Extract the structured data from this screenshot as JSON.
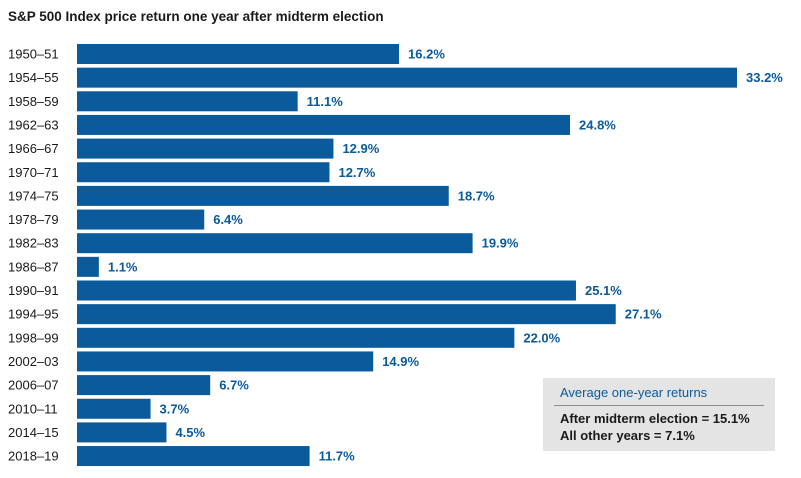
{
  "chart_data": {
    "type": "bar",
    "orientation": "horizontal",
    "title": "S&P 500 Index price return one year after midterm election",
    "categories": [
      "1950–51",
      "1954–55",
      "1958–59",
      "1962–63",
      "1966–67",
      "1970–71",
      "1974–75",
      "1978–79",
      "1982–83",
      "1986–87",
      "1990–91",
      "1994–95",
      "1998–99",
      "2002–03",
      "2006–07",
      "2010–11",
      "2014–15",
      "2018–19"
    ],
    "values": [
      16.2,
      33.2,
      11.1,
      24.8,
      12.9,
      12.7,
      18.7,
      6.4,
      19.9,
      1.1,
      25.1,
      27.1,
      22.0,
      14.9,
      6.7,
      3.7,
      4.5,
      11.7
    ],
    "value_labels": [
      "16.2%",
      "33.2%",
      "11.1%",
      "24.8%",
      "12.9%",
      "12.7%",
      "18.7%",
      "6.4%",
      "19.9%",
      "1.1%",
      "25.1%",
      "27.1%",
      "22.0%",
      "14.9%",
      "6.7%",
      "3.7%",
      "4.5%",
      "11.7%"
    ],
    "unit": "%",
    "xlim": [
      0,
      33.2
    ],
    "grid": false,
    "bar_color": "#0a5a9c",
    "label_color": "#0a5a9c"
  },
  "legend": {
    "heading": "Average one-year returns",
    "line1": "After midterm election = 15.1%",
    "line2": "All other years = 7.1%"
  }
}
